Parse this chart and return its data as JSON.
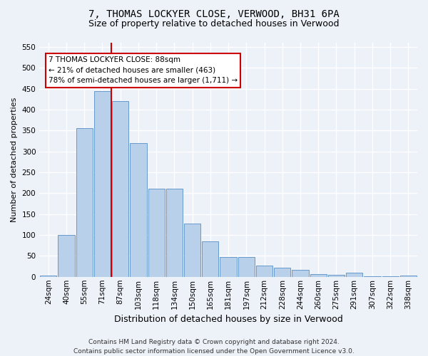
{
  "title": "7, THOMAS LOCKYER CLOSE, VERWOOD, BH31 6PA",
  "subtitle": "Size of property relative to detached houses in Verwood",
  "xlabel": "Distribution of detached houses by size in Verwood",
  "ylabel": "Number of detached properties",
  "footer_line1": "Contains HM Land Registry data © Crown copyright and database right 2024.",
  "footer_line2": "Contains public sector information licensed under the Open Government Licence v3.0.",
  "property_label": "7 THOMAS LOCKYER CLOSE: 88sqm",
  "annotation_line2": "← 21% of detached houses are smaller (463)",
  "annotation_line3": "78% of semi-detached houses are larger (1,711) →",
  "categories": [
    "24sqm",
    "40sqm",
    "55sqm",
    "71sqm",
    "87sqm",
    "103sqm",
    "118sqm",
    "134sqm",
    "150sqm",
    "165sqm",
    "181sqm",
    "197sqm",
    "212sqm",
    "228sqm",
    "244sqm",
    "260sqm",
    "275sqm",
    "291sqm",
    "307sqm",
    "322sqm",
    "338sqm"
  ],
  "values": [
    3,
    100,
    355,
    445,
    420,
    320,
    210,
    210,
    128,
    85,
    48,
    48,
    27,
    22,
    17,
    6,
    5,
    10,
    2,
    1,
    3
  ],
  "bar_color": "#b8d0ea",
  "bar_edge_color": "#6699cc",
  "vline_color": "#cc0000",
  "vline_x": 3.5,
  "ylim": [
    0,
    560
  ],
  "yticks": [
    0,
    50,
    100,
    150,
    200,
    250,
    300,
    350,
    400,
    450,
    500,
    550
  ],
  "background_color": "#edf2f9",
  "grid_color": "#ffffff",
  "annotation_box_facecolor": "#ffffff",
  "annotation_box_edgecolor": "#cc0000",
  "title_fontsize": 10,
  "subtitle_fontsize": 9,
  "xlabel_fontsize": 9,
  "ylabel_fontsize": 8,
  "tick_fontsize": 7.5,
  "footer_fontsize": 6.5
}
